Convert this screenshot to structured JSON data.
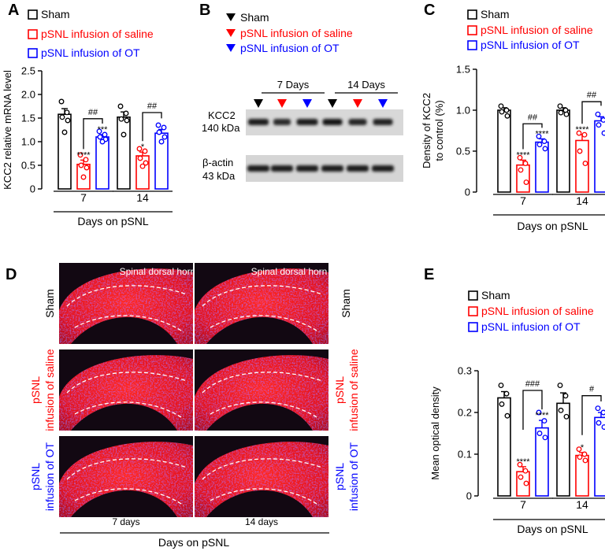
{
  "colors": {
    "sham": "#000000",
    "saline": "#ff0000",
    "ot": "#0000ff",
    "tissue_red": "#e8121c",
    "tissue_blue": "#1f2aa8",
    "tissue_bg": "#120812"
  },
  "panel_labels": [
    "A",
    "B",
    "C",
    "D",
    "E"
  ],
  "legend": {
    "sham": "Sham",
    "saline": "pSNL infusion of saline",
    "ot": "pSNL infusion of OT"
  },
  "blot": {
    "day7_label": "7 Days",
    "day14_label": "14 Days",
    "kcc2_label_1": "KCC2",
    "kcc2_label_2": "140 kDa",
    "actin_label_1": "β-actin",
    "actin_label_2": "43 kDa",
    "lane_groups": [
      "sham",
      "saline",
      "ot",
      "sham",
      "saline",
      "ot"
    ]
  },
  "micro": {
    "region_label": "Spinal dorsal horn",
    "row_labels": [
      {
        "line1": "Sham",
        "line2": "",
        "color_key": "sham"
      },
      {
        "line1": "pSNL",
        "line2": "infusion of saline",
        "color_key": "saline"
      },
      {
        "line1": "pSNL",
        "line2": "infusion of OT",
        "color_key": "ot"
      }
    ],
    "col_labels": [
      "7 days",
      "14 days"
    ],
    "xlabel": "Days on pSNL"
  },
  "chart_data": [
    {
      "id": "A",
      "type": "bar",
      "categories": [
        "7",
        "14"
      ],
      "xlabel": "Days on pSNL",
      "ylabel": "KCC2 relative mRNA level",
      "ylim": [
        0,
        2.5
      ],
      "yticks": [
        "0",
        "0.5",
        "1.0",
        "1.5",
        "2.0",
        "2.5"
      ],
      "series": [
        {
          "name": "Sham",
          "values": [
            1.58,
            1.52
          ],
          "sem": [
            0.12,
            0.11
          ]
        },
        {
          "name": "pSNL infusion of saline",
          "values": [
            0.52,
            0.7
          ],
          "sem": [
            0.09,
            0.08
          ]
        },
        {
          "name": "pSNL infusion of OT",
          "values": [
            1.1,
            1.18
          ],
          "sem": [
            0.05,
            0.08
          ]
        }
      ],
      "points": [
        [
          [
            1.85,
            1.62,
            1.52,
            1.45,
            1.2
          ],
          [
            1.75,
            1.6,
            1.48,
            1.45,
            1.15
          ]
        ],
        [
          [
            0.72,
            0.62,
            0.5,
            0.45,
            0.25
          ],
          [
            0.85,
            0.8,
            0.65,
            0.55,
            0.48
          ]
        ],
        [
          [
            1.22,
            1.15,
            1.1,
            1.05,
            1.0
          ],
          [
            1.35,
            1.3,
            1.2,
            1.1,
            1.0
          ]
        ]
      ],
      "stars": [
        [
          "****",
          "*"
        ],
        [
          "***",
          ""
        ]
      ],
      "comparison": [
        "##",
        "##"
      ]
    },
    {
      "id": "C",
      "type": "bar",
      "categories": [
        "7",
        "14"
      ],
      "xlabel": "Days on pSNL",
      "ylabel": "Density of KCC2 to control (%)",
      "ylim": [
        0,
        1.5
      ],
      "yticks": [
        "0",
        "0.5",
        "1.0",
        "1.5"
      ],
      "series": [
        {
          "name": "Sham",
          "values": [
            1.0,
            1.0
          ],
          "sem": [
            0.03,
            0.03
          ]
        },
        {
          "name": "pSNL infusion of saline",
          "values": [
            0.33,
            0.63
          ],
          "sem": [
            0.06,
            0.07
          ]
        },
        {
          "name": "pSNL infusion of OT",
          "values": [
            0.61,
            0.87
          ],
          "sem": [
            0.04,
            0.05
          ]
        }
      ],
      "points": [
        [
          [
            1.05,
            1.0,
            0.98,
            0.93
          ],
          [
            1.05,
            1.0,
            0.97,
            0.95
          ]
        ],
        [
          [
            0.42,
            0.35,
            0.27,
            0.12
          ],
          [
            0.72,
            0.7,
            0.5,
            0.35
          ]
        ],
        [
          [
            0.68,
            0.62,
            0.58,
            0.53
          ],
          [
            0.95,
            0.88,
            0.82,
            0.72
          ]
        ]
      ],
      "stars": [
        [
          "****",
          "****"
        ],
        [
          "****",
          ""
        ]
      ],
      "comparison": [
        "##",
        "##"
      ]
    },
    {
      "id": "E",
      "type": "bar",
      "categories": [
        "7",
        "14"
      ],
      "xlabel": "Days on pSNL",
      "ylabel": "Mean optical density",
      "ylim": [
        0,
        0.3
      ],
      "yticks": [
        "0",
        "0.1",
        "0.2",
        "0.3"
      ],
      "series": [
        {
          "name": "Sham",
          "values": [
            0.235,
            0.222
          ],
          "sem": [
            0.015,
            0.025
          ]
        },
        {
          "name": "pSNL infusion of saline",
          "values": [
            0.058,
            0.097
          ],
          "sem": [
            0.012,
            0.007
          ]
        },
        {
          "name": "pSNL infusion of OT",
          "values": [
            0.163,
            0.188
          ],
          "sem": [
            0.018,
            0.012
          ]
        }
      ],
      "points": [
        [
          [
            0.265,
            0.245,
            0.22,
            0.192
          ],
          [
            0.265,
            0.24,
            0.205,
            0.19
          ]
        ],
        [
          [
            0.075,
            0.06,
            0.045,
            0.03
          ],
          [
            0.112,
            0.1,
            0.093,
            0.085
          ]
        ],
        [
          [
            0.2,
            0.18,
            0.15,
            0.14
          ],
          [
            0.21,
            0.2,
            0.175,
            0.165
          ]
        ]
      ],
      "stars": [
        [
          "****",
          "*"
        ],
        [
          "****",
          ""
        ]
      ],
      "comparison": [
        "###",
        "#"
      ]
    }
  ]
}
